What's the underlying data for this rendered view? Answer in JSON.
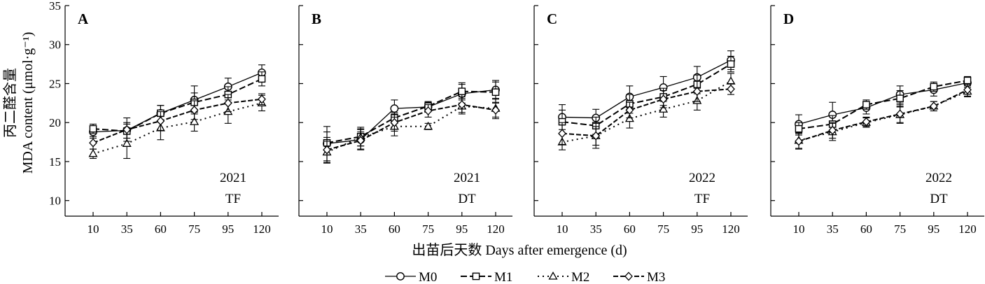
{
  "figure": {
    "x_axis_title": "出苗后天数 Days after emergence (d)",
    "y_axis_title_cn": "丙二醛含量",
    "y_axis_title_en": "MDA content (μmol·g⁻¹)"
  },
  "legend": [
    {
      "series": "M0",
      "label": "M0"
    },
    {
      "series": "M1",
      "label": "M1"
    },
    {
      "series": "M2",
      "label": "M2"
    },
    {
      "series": "M3",
      "label": "M3"
    }
  ],
  "chart_data": [
    {
      "type": "line",
      "panel": "A",
      "year": "2021",
      "treatment": "TF",
      "categories": [
        "10",
        "35",
        "60",
        "75",
        "95",
        "120"
      ],
      "ylim": [
        8,
        35
      ],
      "yticks": [
        10,
        15,
        20,
        25,
        30,
        35
      ],
      "xlabel": "出苗后天数 Days after emergence (d)",
      "ylabel": "丙二醛含量 MDA content (μmol·g⁻¹)",
      "series": [
        {
          "name": "M0",
          "values": [
            18.8,
            19.0,
            21.2,
            22.9,
            24.6,
            26.4
          ],
          "errors": [
            0.8,
            1.0,
            1.0,
            1.8,
            1.1,
            1.0
          ]
        },
        {
          "name": "M1",
          "values": [
            19.2,
            18.9,
            21.2,
            22.6,
            23.6,
            25.6
          ],
          "errors": [
            0.6,
            0.9,
            1.0,
            1.2,
            1.0,
            0.9
          ]
        },
        {
          "name": "M2",
          "values": [
            16.0,
            17.3,
            19.3,
            20.1,
            21.4,
            22.5
          ],
          "errors": [
            0.6,
            1.9,
            1.5,
            1.2,
            1.5,
            1.0
          ]
        },
        {
          "name": "M3",
          "values": [
            17.4,
            19.1,
            20.2,
            21.6,
            22.5,
            23.0
          ],
          "errors": [
            0.8,
            1.5,
            1.2,
            1.2,
            1.1,
            0.7
          ]
        }
      ]
    },
    {
      "type": "line",
      "panel": "B",
      "year": "2021",
      "treatment": "DT",
      "categories": [
        "10",
        "35",
        "60",
        "75",
        "95",
        "120"
      ],
      "ylim": [
        8,
        35
      ],
      "yticks": [
        10,
        15,
        20,
        25,
        30,
        35
      ],
      "xlabel": "出苗后天数 Days after emergence (d)",
      "ylabel": "丙二醛含量 MDA content (μmol·g⁻¹)",
      "series": [
        {
          "name": "M0",
          "values": [
            17.3,
            17.8,
            21.8,
            22.0,
            23.7,
            24.2
          ],
          "errors": [
            2.2,
            1.3,
            1.1,
            0.6,
            1.2,
            1.2
          ]
        },
        {
          "name": "M1",
          "values": [
            17.4,
            18.2,
            20.6,
            22.1,
            24.0,
            23.9
          ],
          "errors": [
            1.4,
            1.2,
            0.7,
            0.6,
            1.1,
            1.3
          ]
        },
        {
          "name": "M2",
          "values": [
            16.2,
            18.1,
            19.5,
            19.5,
            22.1,
            21.8
          ],
          "errors": [
            1.4,
            1.1,
            1.2,
            0.4,
            1.0,
            1.3
          ]
        },
        {
          "name": "M3",
          "values": [
            16.5,
            17.7,
            20.0,
            21.5,
            22.3,
            21.6
          ],
          "errors": [
            1.6,
            1.1,
            1.1,
            0.8,
            1.0,
            0.9
          ]
        }
      ]
    },
    {
      "type": "line",
      "panel": "C",
      "year": "2022",
      "treatment": "TF",
      "categories": [
        "10",
        "35",
        "60",
        "75",
        "95",
        "120"
      ],
      "ylim": [
        8,
        35
      ],
      "yticks": [
        10,
        15,
        20,
        25,
        30,
        35
      ],
      "xlabel": "出苗后天数 Days after emergence (d)",
      "ylabel": "丙二醛含量 MDA content (μmol·g⁻¹)",
      "series": [
        {
          "name": "M0",
          "values": [
            20.7,
            20.6,
            23.3,
            24.5,
            25.8,
            28.0
          ],
          "errors": [
            1.6,
            1.1,
            1.4,
            1.4,
            1.4,
            1.2
          ]
        },
        {
          "name": "M1",
          "values": [
            20.1,
            19.6,
            22.4,
            23.3,
            24.9,
            27.5
          ],
          "errors": [
            1.5,
            1.1,
            1.2,
            1.1,
            1.2,
            1.0
          ]
        },
        {
          "name": "M2",
          "values": [
            17.5,
            18.3,
            20.5,
            21.7,
            22.8,
            25.3
          ],
          "errors": [
            1.0,
            1.6,
            1.2,
            1.0,
            1.2,
            1.0
          ]
        },
        {
          "name": "M3",
          "values": [
            18.6,
            18.3,
            21.6,
            23.0,
            24.0,
            24.3
          ],
          "errors": [
            1.4,
            1.2,
            1.0,
            1.1,
            1.3,
            0.7
          ]
        }
      ]
    },
    {
      "type": "line",
      "panel": "D",
      "year": "2022",
      "treatment": "DT",
      "categories": [
        "10",
        "35",
        "60",
        "75",
        "95",
        "120"
      ],
      "ylim": [
        8,
        35
      ],
      "yticks": [
        10,
        15,
        20,
        25,
        30,
        35
      ],
      "xlabel": "出苗后天数 Days after emergence (d)",
      "ylabel": "丙二醛含量 MDA content (μmol·g⁻¹)",
      "series": [
        {
          "name": "M0",
          "values": [
            19.8,
            21.0,
            21.9,
            23.6,
            24.2,
            25.1
          ],
          "errors": [
            1.2,
            1.6,
            0.8,
            1.1,
            0.8,
            0.6
          ]
        },
        {
          "name": "M1",
          "values": [
            19.2,
            19.8,
            22.3,
            23.1,
            24.6,
            25.4
          ],
          "errors": [
            0.8,
            1.1,
            0.6,
            1.0,
            0.6,
            0.5
          ]
        },
        {
          "name": "M2",
          "values": [
            17.7,
            18.8,
            20.0,
            21.0,
            22.1,
            24.0
          ],
          "errors": [
            1.0,
            1.1,
            0.6,
            1.0,
            0.6,
            0.7
          ]
        },
        {
          "name": "M3",
          "values": [
            17.6,
            19.0,
            20.1,
            21.1,
            22.1,
            24.2
          ],
          "errors": [
            1.0,
            1.0,
            0.6,
            1.2,
            0.6,
            0.8
          ]
        }
      ]
    }
  ]
}
